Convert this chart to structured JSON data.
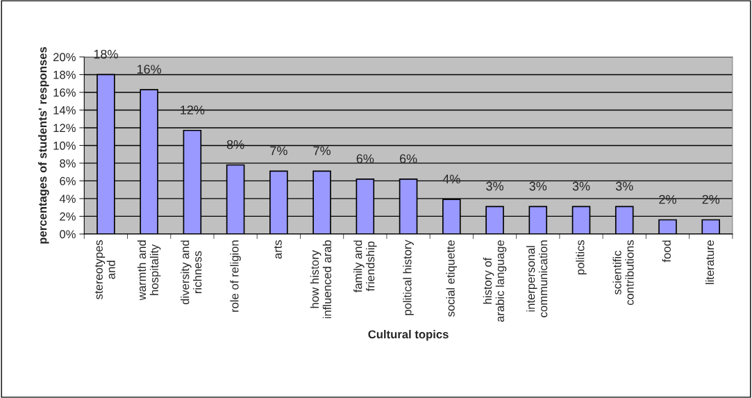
{
  "chart_data": {
    "type": "bar",
    "xlabel": "Cultural topics",
    "ylabel": "percentages of students' responses",
    "categories": [
      "stereotypes\nand",
      "warmth and\nhospitality",
      "diversity and\nrichness",
      "role of religion",
      "arts",
      "how history\ninfluenced arab",
      "family and\nfriendship",
      "political history",
      "social etiquette",
      "history of\narabic language",
      "interpersonal\ncommunication",
      "politics",
      "scientific\ncontributions",
      "food",
      "literature"
    ],
    "values": [
      18.0,
      16.3,
      11.7,
      7.8,
      7.1,
      7.1,
      6.2,
      6.2,
      3.9,
      3.1,
      3.1,
      3.1,
      3.1,
      1.6,
      1.6
    ],
    "value_labels": [
      "18%",
      "16%",
      "12%",
      "8%",
      "7%",
      "7%",
      "6%",
      "6%",
      "4%",
      "3%",
      "3%",
      "3%",
      "3%",
      "2%",
      "2%"
    ],
    "color": "#9999ff",
    "ylim": [
      0,
      20
    ],
    "yticks": [
      {
        "value": 0,
        "label": "0%"
      },
      {
        "value": 2,
        "label": "2%"
      },
      {
        "value": 4,
        "label": "4%"
      },
      {
        "value": 6,
        "label": "6%"
      },
      {
        "value": 8,
        "label": "8%"
      },
      {
        "value": 10,
        "label": "10%"
      },
      {
        "value": 12,
        "label": "12%"
      },
      {
        "value": 14,
        "label": "14%"
      },
      {
        "value": 16,
        "label": "16%"
      },
      {
        "value": 18,
        "label": "18%"
      },
      {
        "value": 20,
        "label": "20%"
      }
    ],
    "grid": "y",
    "legend": false
  }
}
